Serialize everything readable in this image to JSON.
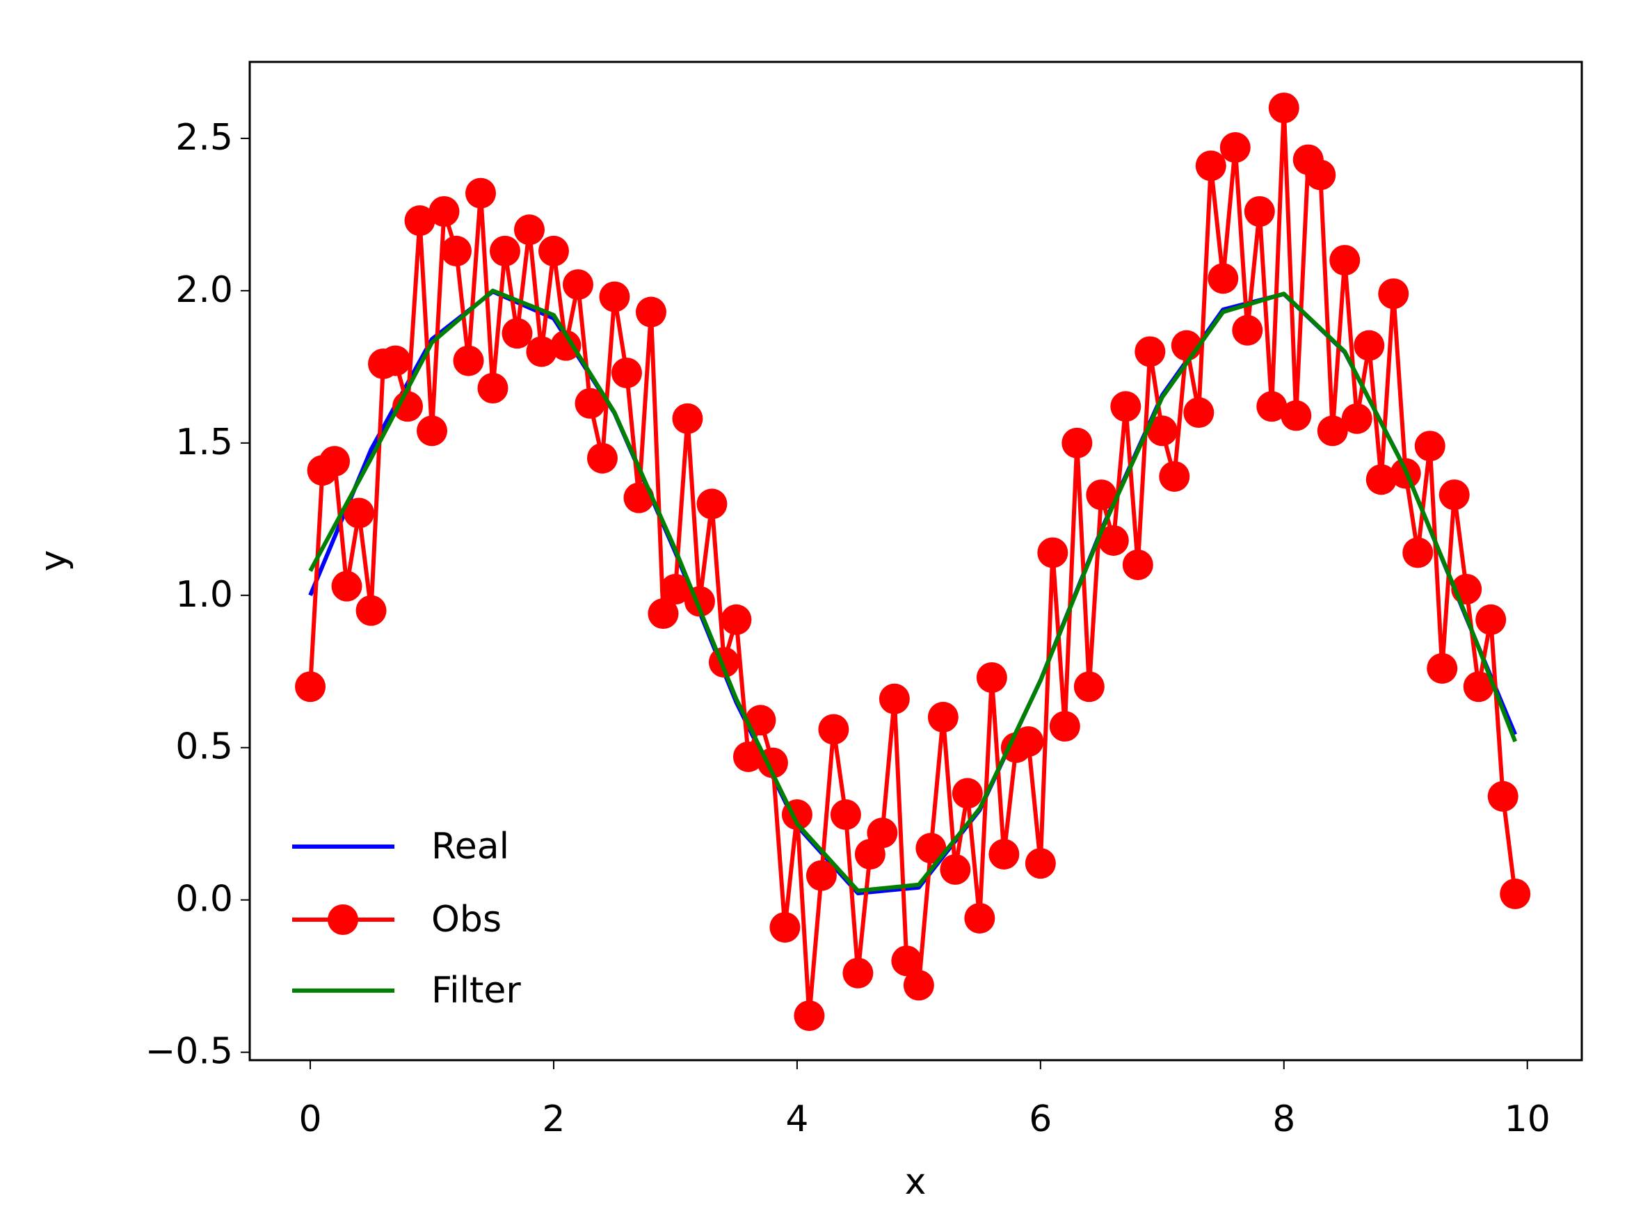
{
  "chart_data": {
    "type": "line",
    "xlabel": "x",
    "ylabel": "y",
    "xlim": [
      -0.4975,
      10.4475
    ],
    "xticks": [
      0,
      2,
      4,
      6,
      8,
      10
    ],
    "ylim": [
      -0.526,
      2.751
    ],
    "yticks": [
      {
        "value": -0.5,
        "label": "−0.5"
      },
      {
        "value": 0,
        "label": "0.0"
      },
      {
        "value": 0.5,
        "label": "0.5"
      },
      {
        "value": 1,
        "label": "1.0"
      },
      {
        "value": 1.5,
        "label": "1.5"
      },
      {
        "value": 2,
        "label": "2.0"
      },
      {
        "value": 2.5,
        "label": "2.5"
      }
    ],
    "legend": "lower left",
    "series": [
      {
        "name": "Real",
        "color": "#0000ff",
        "marker": false,
        "x": [
          0,
          0.5,
          1,
          1.5,
          2,
          2.5,
          3,
          3.5,
          4,
          4.5,
          5,
          5.5,
          6,
          6.5,
          7,
          7.5,
          8,
          8.5,
          9,
          9.5,
          9.9
        ],
        "values": [
          1.0,
          1.479,
          1.841,
          1.997,
          1.909,
          1.598,
          1.141,
          0.649,
          0.243,
          0.022,
          0.041,
          0.295,
          0.721,
          1.215,
          1.657,
          1.938,
          1.989,
          1.798,
          1.412,
          0.925,
          0.543
        ]
      },
      {
        "name": "Obs",
        "color": "#ff0000",
        "marker": true,
        "x": [
          0,
          0.1,
          0.2,
          0.3,
          0.4,
          0.5,
          0.6,
          0.7,
          0.8,
          0.9,
          1,
          1.1,
          1.2,
          1.3,
          1.4,
          1.5,
          1.6,
          1.7,
          1.8,
          1.9,
          2,
          2.1,
          2.2,
          2.3,
          2.4,
          2.5,
          2.6,
          2.7,
          2.8,
          2.9,
          3,
          3.1,
          3.2,
          3.3,
          3.4,
          3.5,
          3.6,
          3.7,
          3.8,
          3.9,
          4,
          4.1,
          4.2,
          4.3,
          4.4,
          4.5,
          4.6,
          4.7,
          4.8,
          4.9,
          5,
          5.1,
          5.2,
          5.3,
          5.4,
          5.5,
          5.6,
          5.7,
          5.8,
          5.9,
          6,
          6.1,
          6.2,
          6.3,
          6.4,
          6.5,
          6.6,
          6.7,
          6.8,
          6.9,
          7,
          7.1,
          7.2,
          7.3,
          7.4,
          7.5,
          7.6,
          7.7,
          7.8,
          7.9,
          8,
          8.1,
          8.2,
          8.3,
          8.4,
          8.5,
          8.6,
          8.7,
          8.8,
          8.9,
          9,
          9.1,
          9.2,
          9.3,
          9.4,
          9.5,
          9.6,
          9.7,
          9.8,
          9.9
        ],
        "values": [
          0.7,
          1.41,
          1.44,
          1.03,
          1.27,
          0.95,
          1.76,
          1.77,
          1.62,
          2.23,
          1.54,
          2.26,
          2.13,
          1.77,
          2.32,
          1.68,
          2.13,
          1.86,
          2.2,
          1.8,
          2.13,
          1.82,
          2.02,
          1.63,
          1.45,
          1.98,
          1.73,
          1.32,
          1.93,
          0.94,
          1.02,
          1.58,
          0.98,
          1.3,
          0.78,
          0.92,
          0.47,
          0.59,
          0.45,
          -0.09,
          0.28,
          -0.38,
          0.08,
          0.56,
          0.28,
          -0.24,
          0.15,
          0.22,
          0.66,
          -0.2,
          -0.28,
          0.17,
          0.6,
          0.1,
          0.35,
          -0.06,
          0.73,
          0.15,
          0.5,
          0.52,
          0.12,
          1.14,
          0.57,
          1.5,
          0.7,
          1.33,
          1.18,
          1.62,
          1.1,
          1.8,
          1.54,
          1.39,
          1.82,
          1.6,
          2.41,
          2.04,
          2.47,
          1.87,
          2.26,
          1.62,
          2.6,
          1.59,
          2.43,
          2.38,
          1.54,
          2.1,
          1.58,
          1.82,
          1.38,
          1.99,
          1.4,
          1.14,
          1.49,
          0.76,
          1.33,
          1.02,
          0.7,
          0.92,
          0.34,
          0.02
        ]
      },
      {
        "name": "Filter",
        "color": "#008000",
        "marker": false,
        "x": [
          0,
          0.5,
          1,
          1.5,
          2,
          2.5,
          3,
          3.5,
          4,
          4.5,
          5,
          5.5,
          6,
          6.5,
          7,
          7.5,
          8,
          8.5,
          9,
          9.5,
          9.9
        ],
        "values": [
          1.08,
          1.45,
          1.83,
          2.0,
          1.92,
          1.6,
          1.15,
          0.66,
          0.25,
          0.03,
          0.05,
          0.3,
          0.72,
          1.21,
          1.65,
          1.93,
          1.99,
          1.8,
          1.41,
          0.93,
          0.52
        ]
      }
    ]
  }
}
